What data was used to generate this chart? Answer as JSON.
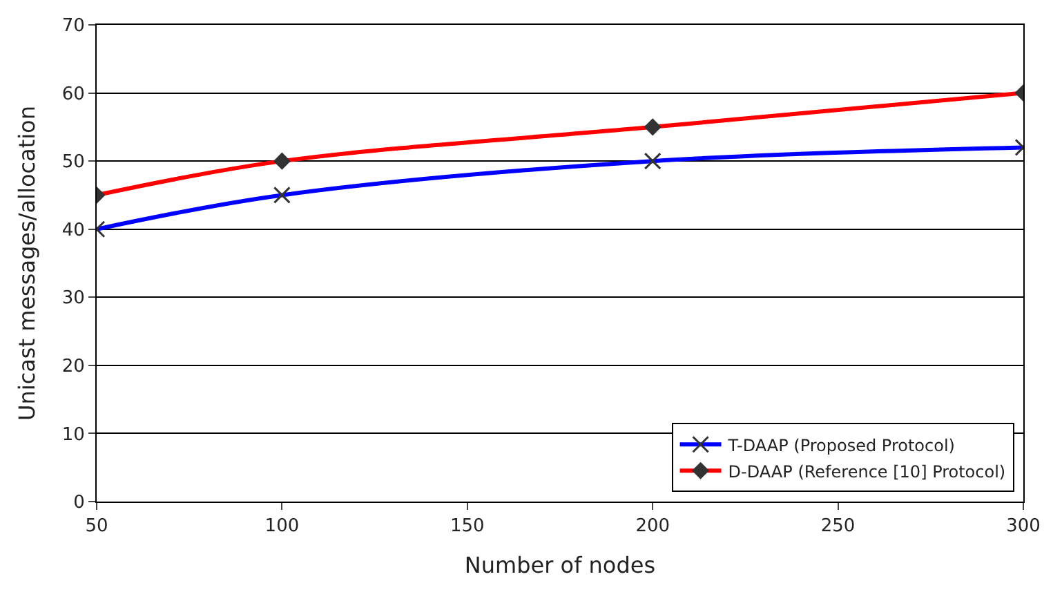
{
  "chart_data": {
    "type": "line",
    "xlabel": "Number of nodes",
    "ylabel": "Unicast messages/allocation",
    "x": [
      50,
      100,
      200,
      300
    ],
    "series": [
      {
        "name": "T-DAAP (Proposed Protocol)",
        "color": "#0000ff",
        "marker": "cross",
        "values": [
          40,
          45,
          50,
          52
        ]
      },
      {
        "name": "D-DAAP (Reference [10] Protocol)",
        "color": "#ff0000",
        "marker": "diamond",
        "values": [
          45,
          50,
          55,
          60
        ]
      }
    ],
    "xlim": [
      50,
      300
    ],
    "xticks": [
      50,
      100,
      150,
      200,
      250,
      300
    ],
    "ylim": [
      0,
      70
    ],
    "yticks": [
      0,
      10,
      20,
      30,
      40,
      50,
      60,
      70
    ],
    "grid": "y",
    "legend": "bottom right",
    "line_style": "solid"
  }
}
